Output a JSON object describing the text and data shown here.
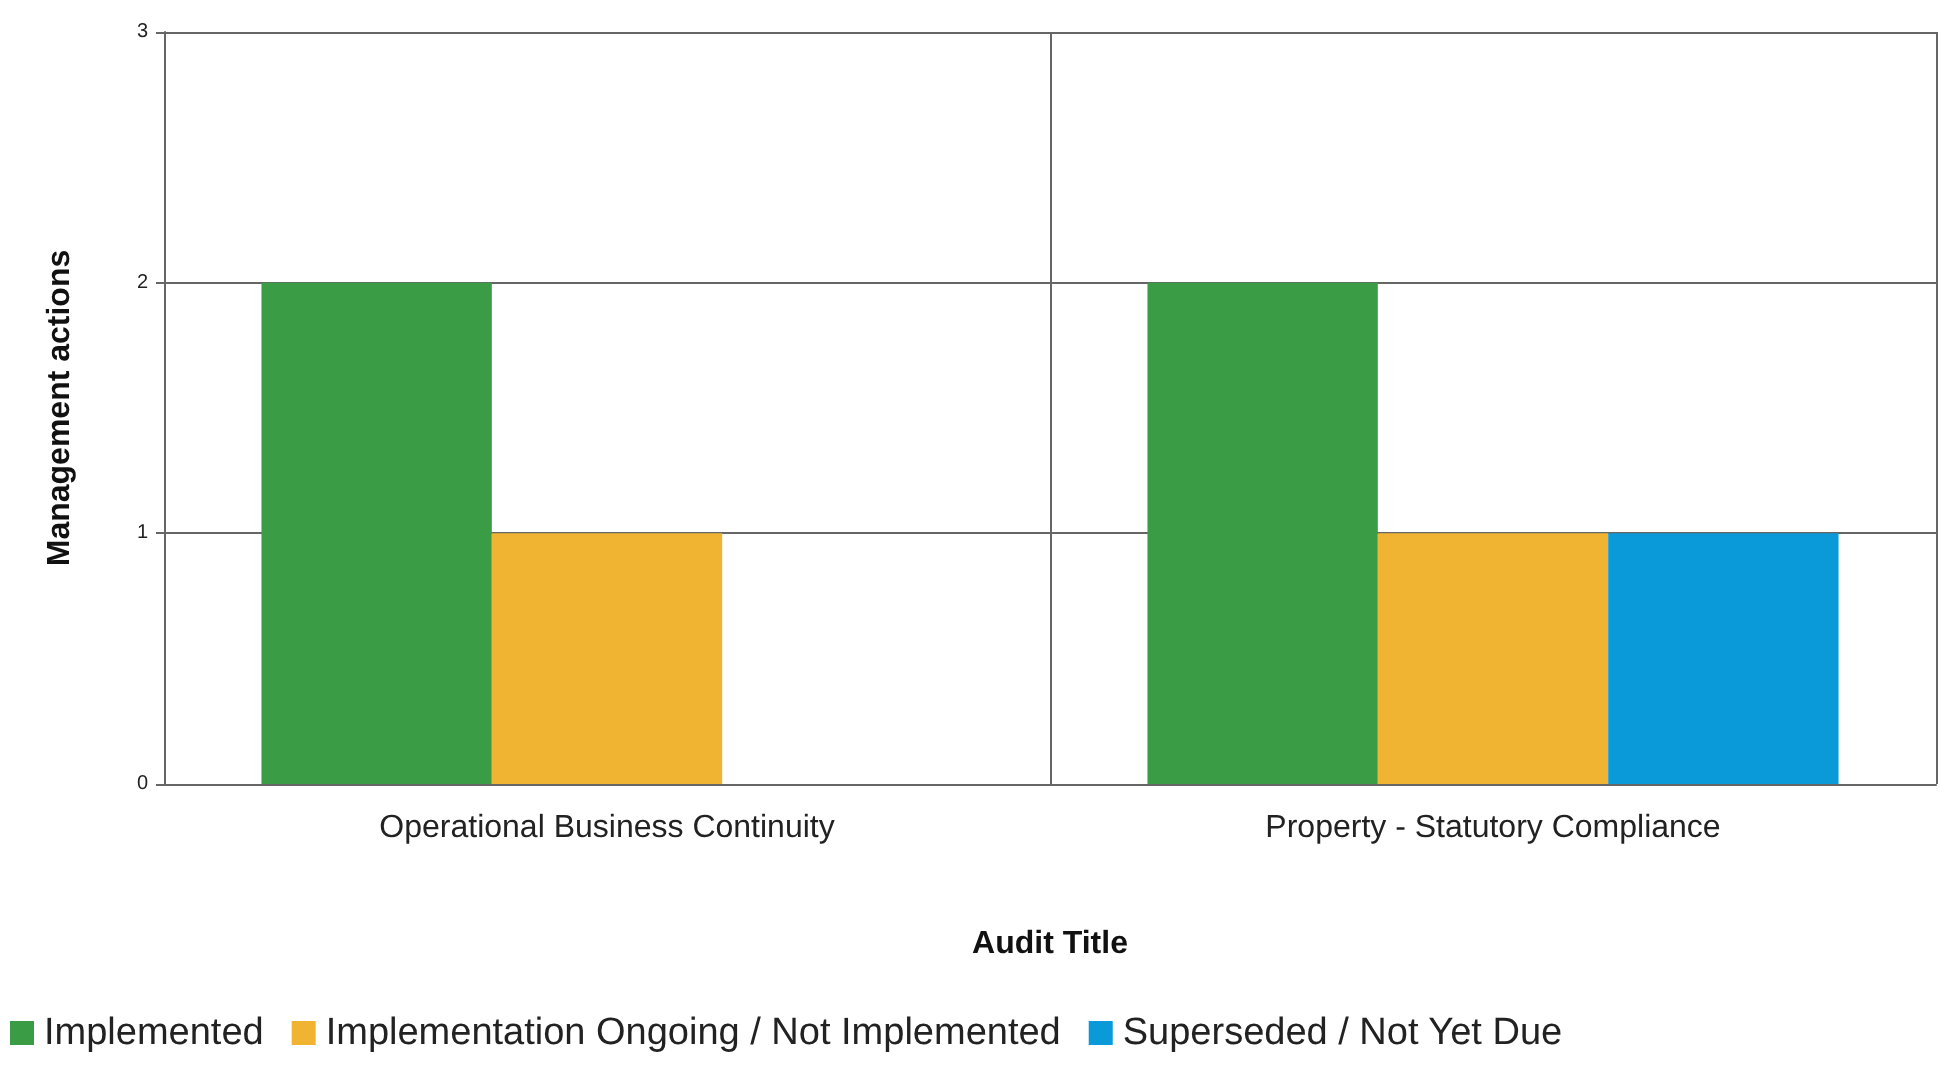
{
  "chart_data": {
    "type": "bar",
    "xlabel": "Audit Title",
    "ylabel": "Management actions",
    "categories": [
      "Operational Business Continuity",
      "Property - Statutory Compliance"
    ],
    "series": [
      {
        "name": "Implemented",
        "color": "#3a9c44",
        "values": [
          2,
          2
        ]
      },
      {
        "name": "Implementation Ongoing / Not Implemented",
        "color": "#f0b432",
        "values": [
          1,
          1
        ]
      },
      {
        "name": "Superseded / Not Yet Due",
        "color": "#0b9ad9",
        "values": [
          0,
          1
        ]
      }
    ],
    "ylim": [
      0,
      3
    ],
    "yticks": [
      0,
      1,
      2,
      3
    ],
    "grid": true,
    "legend": "bottom left"
  }
}
